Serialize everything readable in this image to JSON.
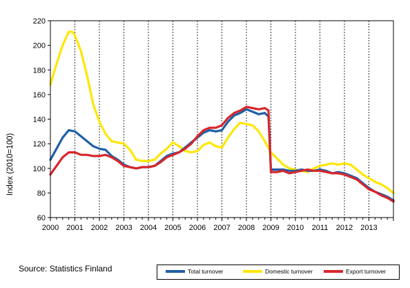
{
  "chart_data": {
    "type": "line",
    "ylabel": "Index (2010=100)",
    "ylim": [
      60,
      220
    ],
    "yticks": [
      60,
      80,
      100,
      120,
      140,
      160,
      180,
      200,
      220
    ],
    "xlim": [
      2000,
      2014
    ],
    "xticks": [
      "2000",
      "2001",
      "2002",
      "2003",
      "2004",
      "2005",
      "2006",
      "2007",
      "2008",
      "2009",
      "2010",
      "2011",
      "2012",
      "2013"
    ],
    "vertical_grid": "dashed",
    "horizontal_grid": false,
    "legend_position": "bottom-right",
    "source": "Source: Statistics Finland",
    "series": [
      {
        "name": "Total turnover",
        "color": "#1f5fa6",
        "points": [
          [
            2000.0,
            107
          ],
          [
            2000.25,
            116
          ],
          [
            2000.5,
            125
          ],
          [
            2000.75,
            131
          ],
          [
            2001.0,
            130
          ],
          [
            2001.25,
            126
          ],
          [
            2001.5,
            122
          ],
          [
            2001.75,
            118
          ],
          [
            2002.0,
            116
          ],
          [
            2002.25,
            115
          ],
          [
            2002.5,
            110
          ],
          [
            2002.75,
            107
          ],
          [
            2003.0,
            103
          ],
          [
            2003.25,
            101
          ],
          [
            2003.5,
            100
          ],
          [
            2003.75,
            101
          ],
          [
            2004.0,
            101
          ],
          [
            2004.25,
            102
          ],
          [
            2004.5,
            106
          ],
          [
            2004.75,
            110
          ],
          [
            2005.0,
            112
          ],
          [
            2005.25,
            113
          ],
          [
            2005.5,
            117
          ],
          [
            2005.75,
            121
          ],
          [
            2006.0,
            125
          ],
          [
            2006.25,
            129
          ],
          [
            2006.5,
            131
          ],
          [
            2006.75,
            130
          ],
          [
            2007.0,
            131
          ],
          [
            2007.25,
            138
          ],
          [
            2007.5,
            143
          ],
          [
            2007.75,
            145
          ],
          [
            2008.0,
            148
          ],
          [
            2008.25,
            146
          ],
          [
            2008.5,
            144
          ],
          [
            2008.75,
            145
          ],
          [
            2008.9,
            142
          ],
          [
            2009.0,
            99
          ],
          [
            2009.25,
            99
          ],
          [
            2009.5,
            99
          ],
          [
            2009.75,
            98
          ],
          [
            2010.0,
            98
          ],
          [
            2010.25,
            99
          ],
          [
            2010.5,
            98
          ],
          [
            2010.75,
            98
          ],
          [
            2011.0,
            99
          ],
          [
            2011.25,
            98
          ],
          [
            2011.5,
            96
          ],
          [
            2011.75,
            97
          ],
          [
            2012.0,
            96
          ],
          [
            2012.25,
            94
          ],
          [
            2012.5,
            92
          ],
          [
            2012.75,
            88
          ],
          [
            2013.0,
            84
          ],
          [
            2013.25,
            81
          ],
          [
            2013.5,
            79
          ],
          [
            2013.75,
            77
          ],
          [
            2014.0,
            74
          ]
        ]
      },
      {
        "name": "Domestic turnover",
        "color": "#ffe600",
        "points": [
          [
            2000.0,
            168
          ],
          [
            2000.25,
            185
          ],
          [
            2000.5,
            200
          ],
          [
            2000.75,
            211
          ],
          [
            2000.9,
            211
          ],
          [
            2001.0,
            208
          ],
          [
            2001.25,
            195
          ],
          [
            2001.5,
            175
          ],
          [
            2001.75,
            152
          ],
          [
            2002.0,
            138
          ],
          [
            2002.25,
            128
          ],
          [
            2002.5,
            122
          ],
          [
            2002.75,
            121
          ],
          [
            2003.0,
            120
          ],
          [
            2003.25,
            115
          ],
          [
            2003.5,
            107
          ],
          [
            2003.75,
            106
          ],
          [
            2004.0,
            106
          ],
          [
            2004.25,
            107
          ],
          [
            2004.5,
            112
          ],
          [
            2004.75,
            116
          ],
          [
            2005.0,
            121
          ],
          [
            2005.25,
            118
          ],
          [
            2005.5,
            114
          ],
          [
            2005.75,
            113
          ],
          [
            2006.0,
            114
          ],
          [
            2006.25,
            119
          ],
          [
            2006.5,
            121
          ],
          [
            2006.75,
            118
          ],
          [
            2007.0,
            117
          ],
          [
            2007.25,
            125
          ],
          [
            2007.5,
            132
          ],
          [
            2007.75,
            137
          ],
          [
            2008.0,
            136
          ],
          [
            2008.25,
            135
          ],
          [
            2008.5,
            130
          ],
          [
            2008.75,
            122
          ],
          [
            2009.0,
            113
          ],
          [
            2009.25,
            108
          ],
          [
            2009.5,
            103
          ],
          [
            2009.75,
            100
          ],
          [
            2010.0,
            99
          ],
          [
            2010.25,
            98
          ],
          [
            2010.5,
            97
          ],
          [
            2010.75,
            100
          ],
          [
            2011.0,
            102
          ],
          [
            2011.25,
            103
          ],
          [
            2011.5,
            104
          ],
          [
            2011.75,
            103
          ],
          [
            2012.0,
            104
          ],
          [
            2012.25,
            103
          ],
          [
            2012.5,
            99
          ],
          [
            2012.75,
            95
          ],
          [
            2013.0,
            92
          ],
          [
            2013.25,
            89
          ],
          [
            2013.5,
            87
          ],
          [
            2013.75,
            84
          ],
          [
            2014.0,
            80
          ]
        ]
      },
      {
        "name": "Export turnover",
        "color": "#d7262b",
        "points": [
          [
            2000.0,
            95
          ],
          [
            2000.25,
            102
          ],
          [
            2000.5,
            109
          ],
          [
            2000.75,
            113
          ],
          [
            2001.0,
            113
          ],
          [
            2001.25,
            111
          ],
          [
            2001.5,
            111
          ],
          [
            2001.75,
            110
          ],
          [
            2002.0,
            110
          ],
          [
            2002.25,
            111
          ],
          [
            2002.5,
            109
          ],
          [
            2002.75,
            106
          ],
          [
            2003.0,
            102
          ],
          [
            2003.25,
            101
          ],
          [
            2003.5,
            100
          ],
          [
            2003.75,
            101
          ],
          [
            2004.0,
            101
          ],
          [
            2004.25,
            102
          ],
          [
            2004.5,
            105
          ],
          [
            2004.75,
            109
          ],
          [
            2005.0,
            111
          ],
          [
            2005.25,
            113
          ],
          [
            2005.5,
            116
          ],
          [
            2005.75,
            120
          ],
          [
            2006.0,
            126
          ],
          [
            2006.25,
            131
          ],
          [
            2006.5,
            133
          ],
          [
            2006.75,
            133
          ],
          [
            2007.0,
            135
          ],
          [
            2007.25,
            141
          ],
          [
            2007.5,
            145
          ],
          [
            2007.75,
            147
          ],
          [
            2008.0,
            150
          ],
          [
            2008.25,
            149
          ],
          [
            2008.5,
            148
          ],
          [
            2008.75,
            149
          ],
          [
            2008.9,
            147
          ],
          [
            2009.0,
            97
          ],
          [
            2009.25,
            97
          ],
          [
            2009.5,
            98
          ],
          [
            2009.75,
            96
          ],
          [
            2010.0,
            97
          ],
          [
            2010.25,
            98
          ],
          [
            2010.5,
            99
          ],
          [
            2010.75,
            98
          ],
          [
            2011.0,
            98
          ],
          [
            2011.25,
            97
          ],
          [
            2011.5,
            96
          ],
          [
            2011.75,
            96
          ],
          [
            2012.0,
            95
          ],
          [
            2012.25,
            93
          ],
          [
            2012.5,
            91
          ],
          [
            2012.75,
            87
          ],
          [
            2013.0,
            83
          ],
          [
            2013.25,
            81
          ],
          [
            2013.5,
            78
          ],
          [
            2013.75,
            76
          ],
          [
            2014.0,
            73
          ]
        ]
      }
    ]
  }
}
